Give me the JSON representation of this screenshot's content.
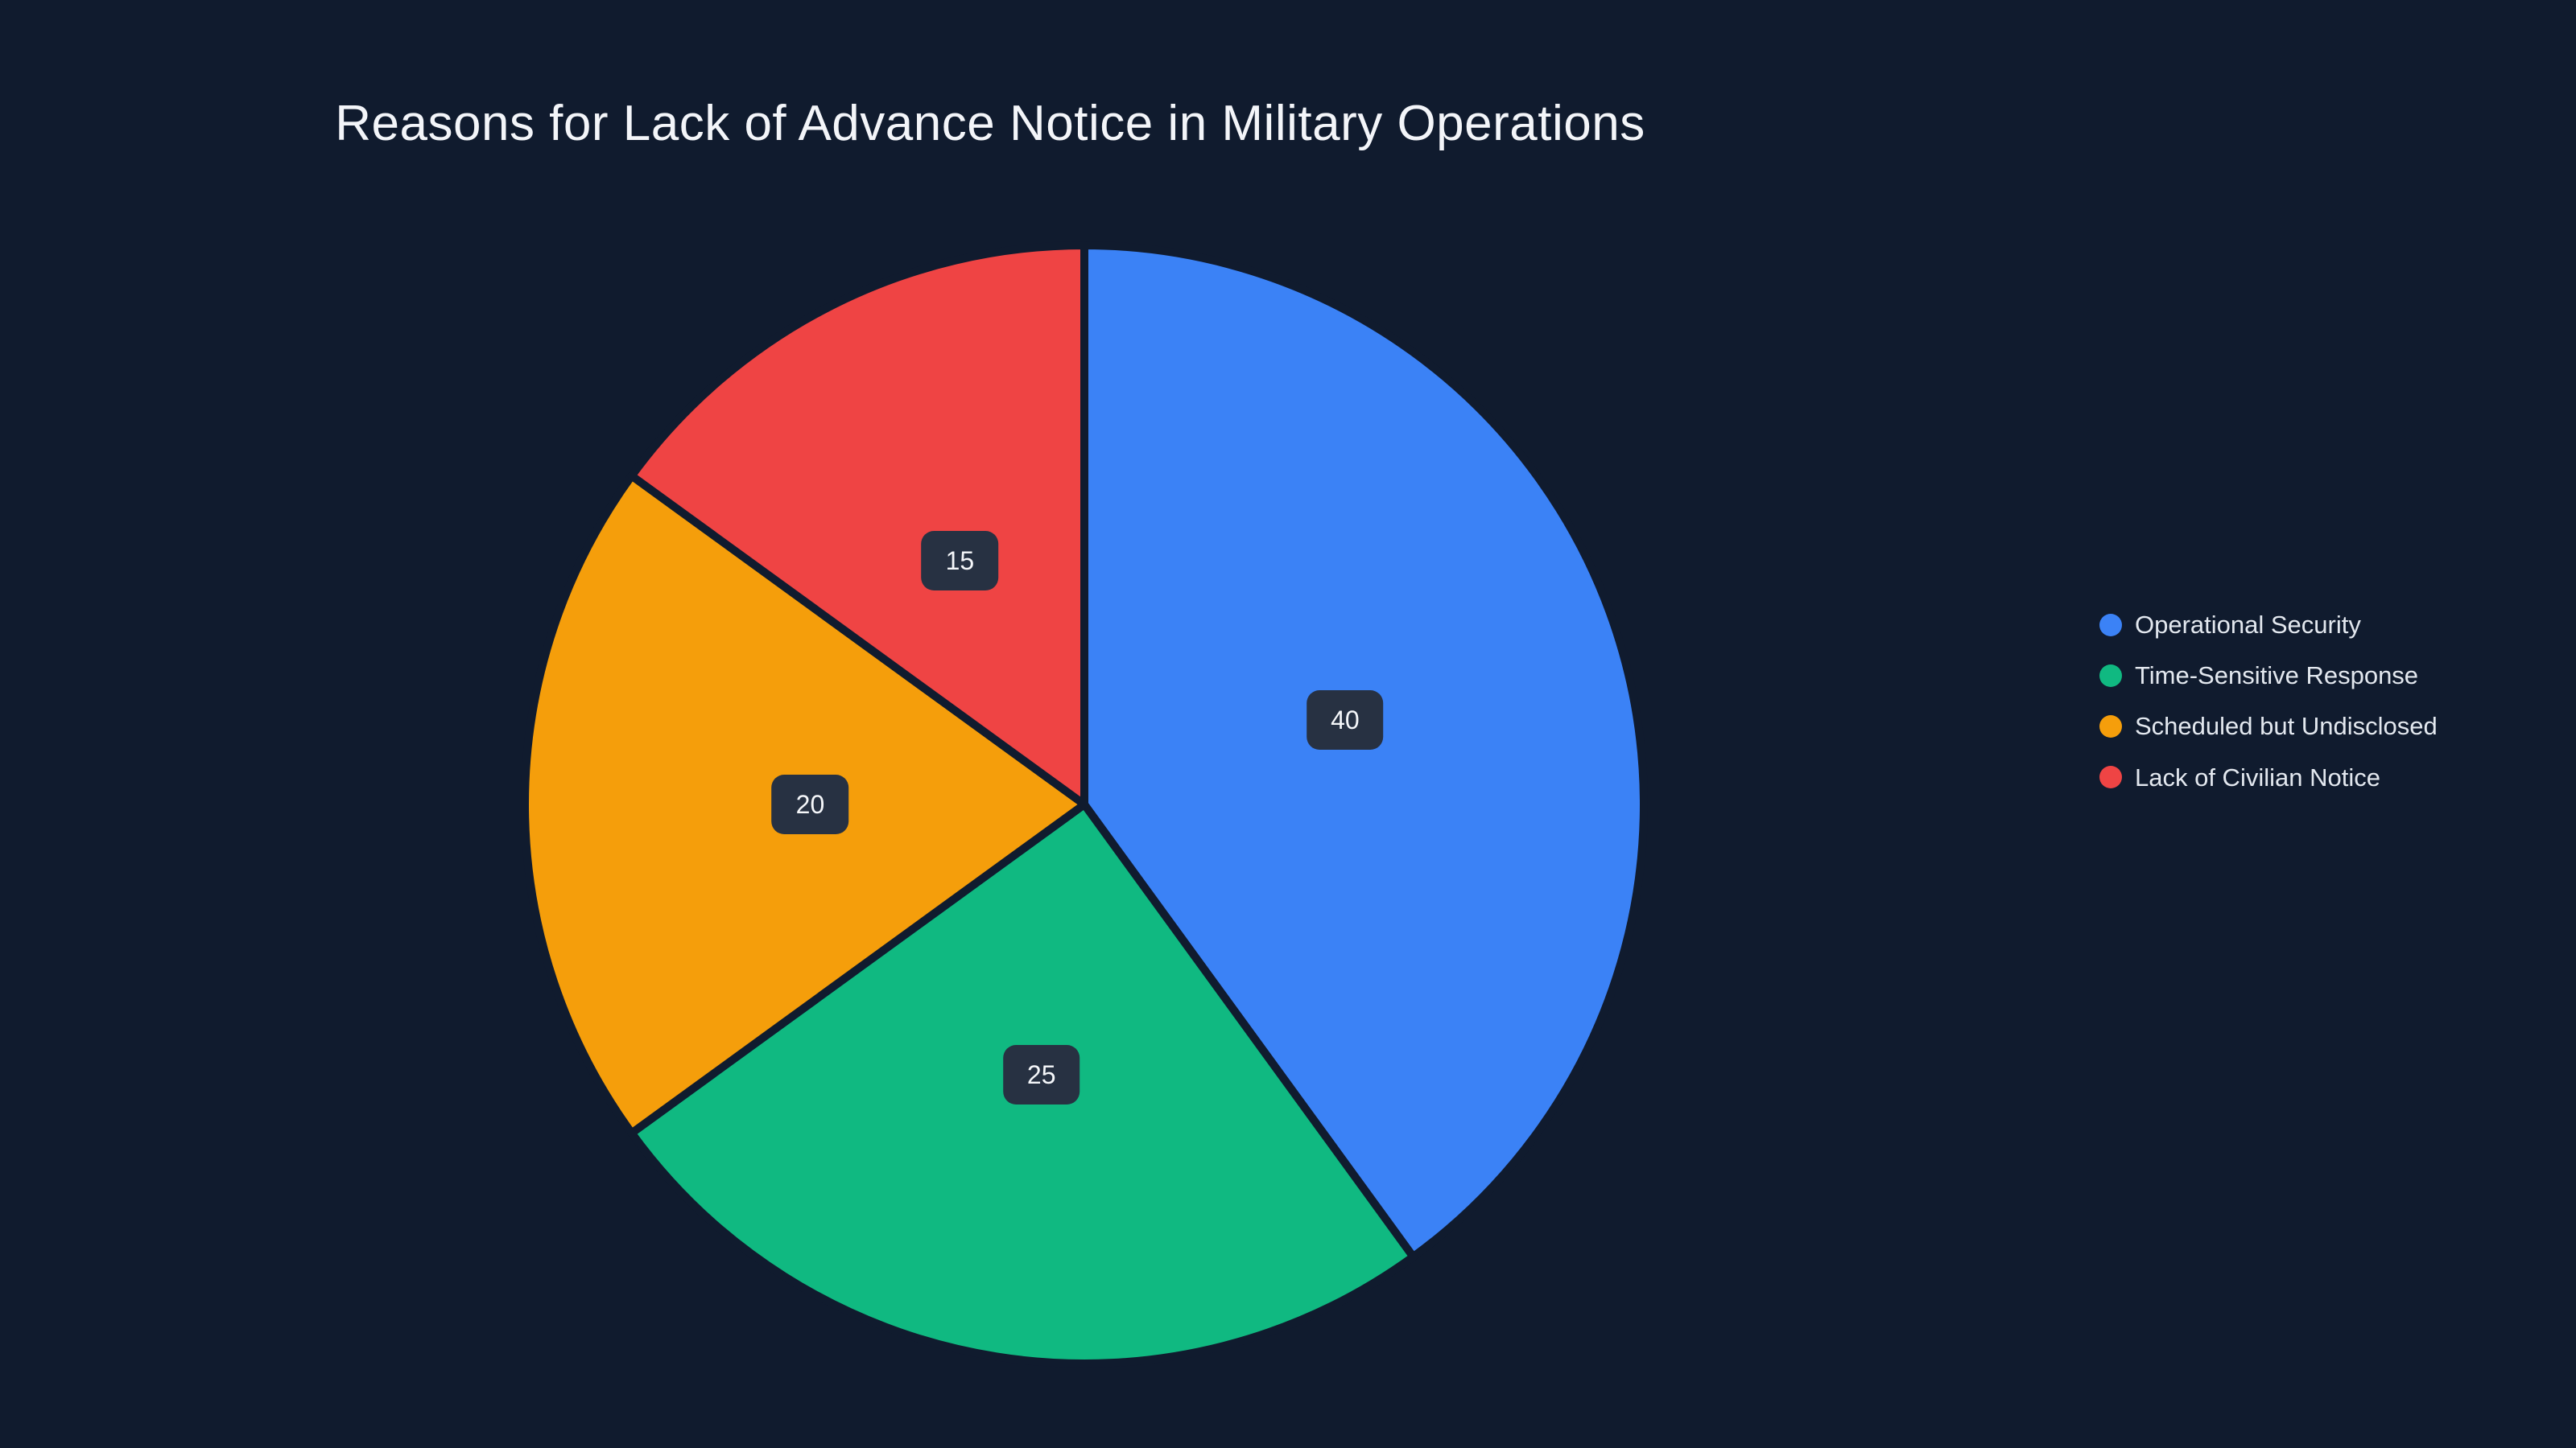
{
  "chart_data": {
    "type": "pie",
    "title": "Reasons for Lack of Advance Notice in Military Operations",
    "categories": [
      "Operational Security",
      "Time-Sensitive Response",
      "Scheduled but Undisclosed",
      "Lack of Civilian Notice"
    ],
    "values": [
      40,
      25,
      20,
      15
    ],
    "labels": [
      "40",
      "25",
      "20",
      "15"
    ],
    "colors": [
      "#3b82f6",
      "#10b981",
      "#f59e0b",
      "#ef4444"
    ],
    "direction": "clockwise",
    "start_angle_deg": 0,
    "legend_position": "right",
    "background_color": "#101b2e",
    "label_box_color": "#273142",
    "title_color": "#f3f5f9",
    "legend_text_color": "#e3e8ef"
  }
}
